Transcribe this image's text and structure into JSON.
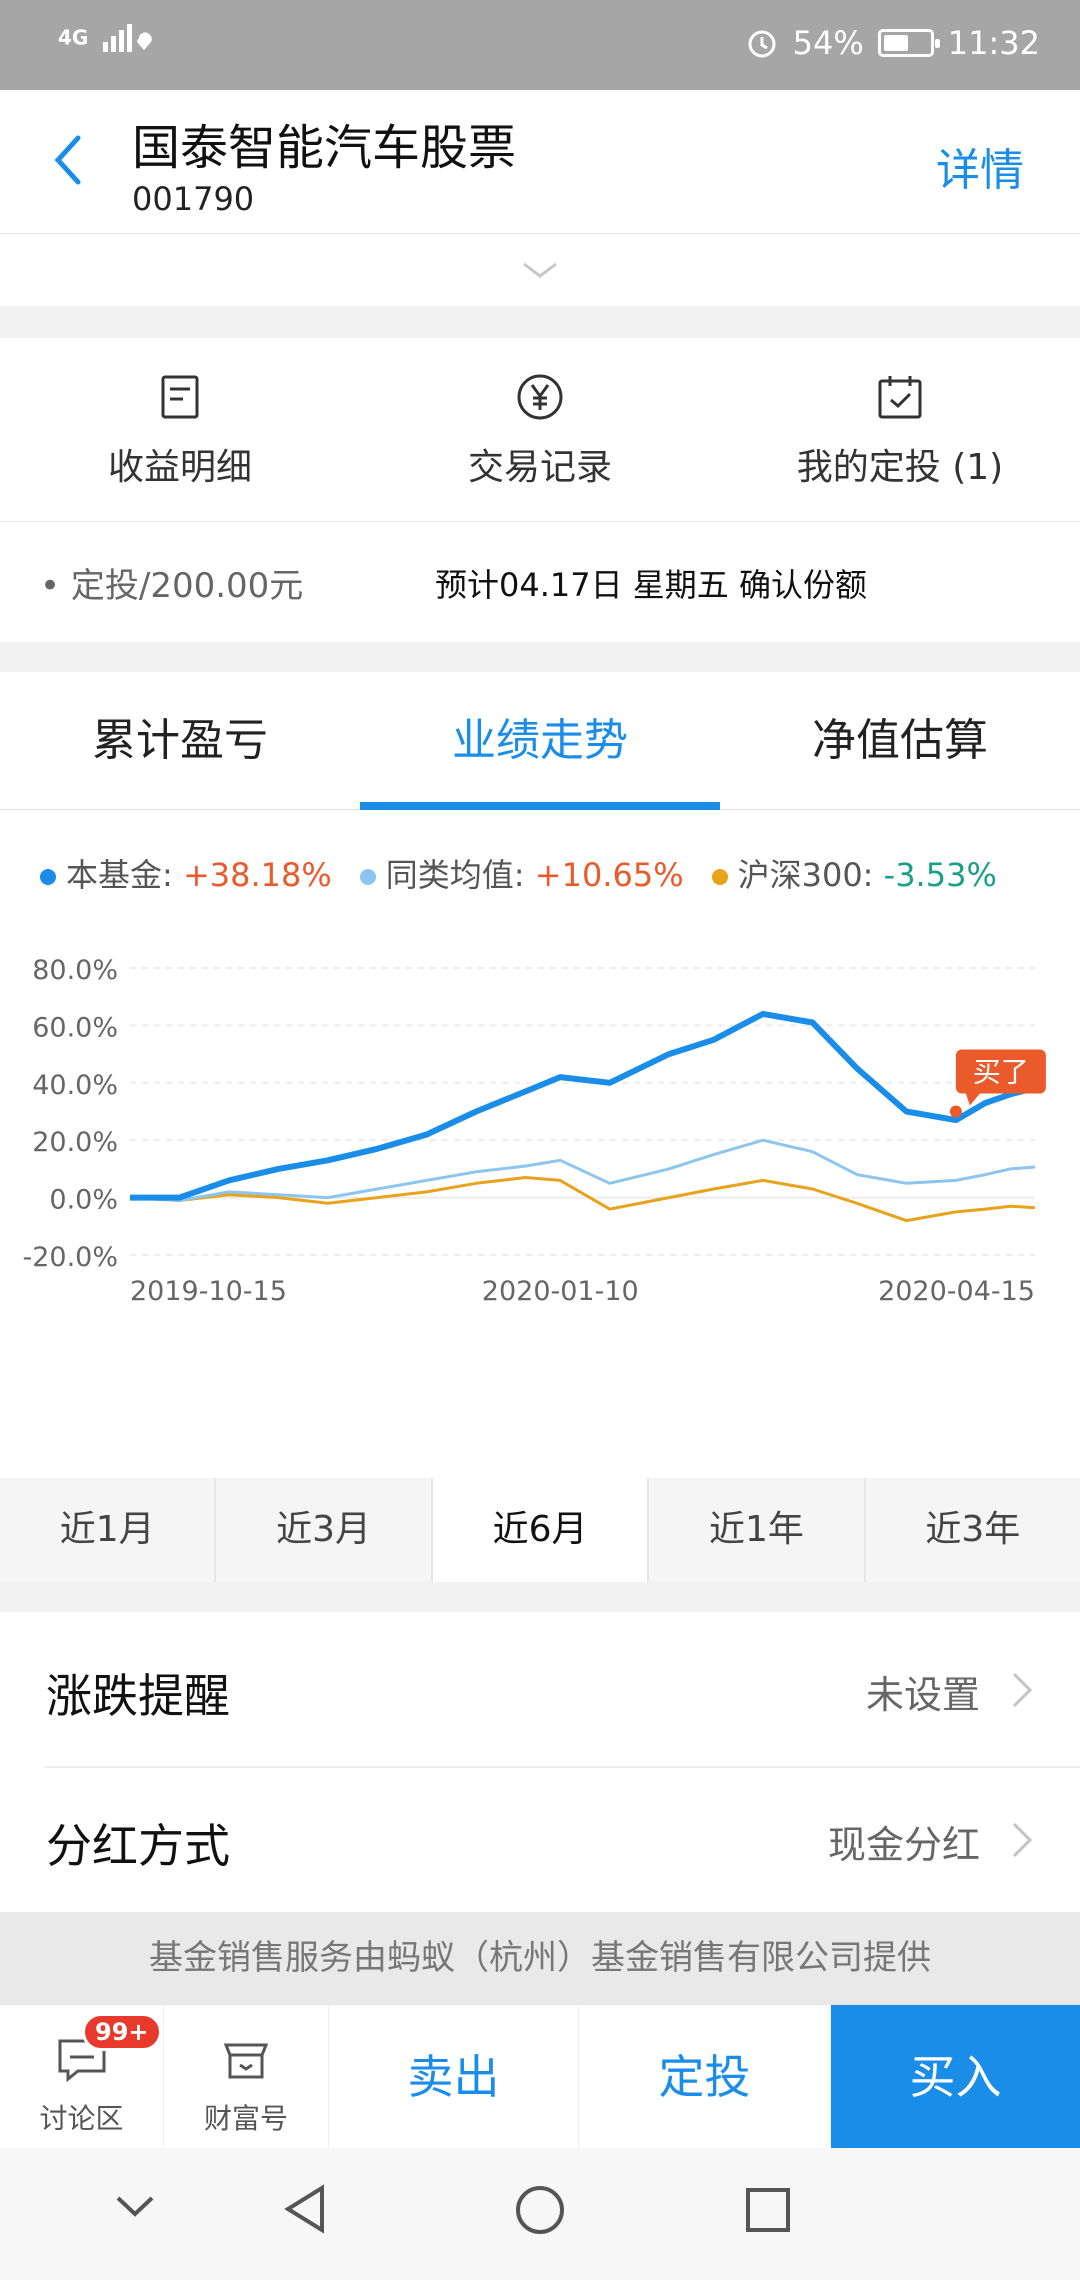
{
  "status_bar": {
    "network": "4G",
    "battery": "54%",
    "battery_level": 0.54,
    "time": "11:32"
  },
  "header": {
    "title": "国泰智能汽车股票",
    "code": "001790",
    "detail_label": "详情"
  },
  "actions": [
    {
      "label": "收益明细",
      "icon": "document-icon"
    },
    {
      "label": "交易记录",
      "icon": "yuan-circle-icon"
    },
    {
      "label": "我的定投 (1)",
      "icon": "calendar-check-icon"
    }
  ],
  "plan": {
    "left": "• 定投/200.00元",
    "right": "预计04.17日 星期五 确认份额"
  },
  "tabs": [
    "累计盈亏",
    "业绩走势",
    "净值估算"
  ],
  "legend": [
    {
      "name": "本基金:",
      "value": "+38.18%",
      "color": "#1a8de9",
      "trend": "up"
    },
    {
      "name": "同类均值:",
      "value": "+10.65%",
      "color": "#8cc6ef",
      "trend": "up"
    },
    {
      "name": "沪深300:",
      "value": "-3.53%",
      "color": "#e8a21c",
      "trend": "down"
    }
  ],
  "chart_data": {
    "type": "line",
    "x_tick_labels": [
      "2019-10-15",
      "2020-01-10",
      "2020-04-15"
    ],
    "y_tick_labels": [
      "80.0%",
      "60.0%",
      "40.0%",
      "20.0%",
      "0.0%",
      "-20.0%"
    ],
    "ylim": [
      -20,
      80
    ],
    "grid": true,
    "x": [
      "2019-10-15",
      "2019-10-25",
      "2019-11-04",
      "2019-11-14",
      "2019-11-24",
      "2019-12-04",
      "2019-12-14",
      "2019-12-24",
      "2020-01-03",
      "2020-01-10",
      "2020-01-20",
      "2020-02-01",
      "2020-02-10",
      "2020-02-20",
      "2020-03-01",
      "2020-03-10",
      "2020-03-20",
      "2020-03-30",
      "2020-04-05",
      "2020-04-10",
      "2020-04-15"
    ],
    "series": [
      {
        "name": "本基金",
        "color": "#1a8de9",
        "values": [
          0,
          0,
          6,
          10,
          13,
          17,
          22,
          30,
          37,
          42,
          40,
          50,
          55,
          64,
          61,
          45,
          30,
          27,
          33,
          36,
          38.18
        ]
      },
      {
        "name": "同类均值",
        "color": "#8cc6ef",
        "values": [
          0,
          -1,
          2,
          1,
          0,
          3,
          6,
          9,
          11,
          13,
          5,
          10,
          15,
          20,
          16,
          8,
          5,
          6,
          8,
          10,
          10.65
        ]
      },
      {
        "name": "沪深300",
        "color": "#e8a21c",
        "values": [
          0,
          -1,
          1,
          0,
          -2,
          0,
          2,
          5,
          7,
          6,
          -4,
          0,
          3,
          6,
          3,
          -2,
          -8,
          -5,
          -4,
          -3,
          -3.53
        ]
      }
    ],
    "annotation": {
      "text": "买了",
      "date": "2020-03-30",
      "value": 30
    }
  },
  "periods": [
    "近1月",
    "近3月",
    "近6月",
    "近1年",
    "近3年"
  ],
  "active_period": 2,
  "settings": [
    {
      "label": "涨跌提醒",
      "value": "未设置"
    },
    {
      "label": "分红方式",
      "value": "现金分红"
    }
  ],
  "provider": "基金销售服务由蚂蚁（杭州）基金销售有限公司提供",
  "bottom": {
    "discuss_label": "讨论区",
    "badge": "99+",
    "wealth_label": "财富号",
    "sell_label": "卖出",
    "plan_label": "定投",
    "buy_label": "买入"
  }
}
